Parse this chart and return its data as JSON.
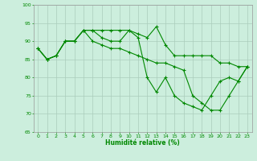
{
  "xlabel": "Humidité relative (%)",
  "xlim": [
    -0.5,
    23.5
  ],
  "ylim": [
    65,
    100
  ],
  "yticks": [
    65,
    70,
    75,
    80,
    85,
    90,
    95,
    100
  ],
  "xticks": [
    0,
    1,
    2,
    3,
    4,
    5,
    6,
    7,
    8,
    9,
    10,
    11,
    12,
    13,
    14,
    15,
    16,
    17,
    18,
    19,
    20,
    21,
    22,
    23
  ],
  "background_color": "#cceedd",
  "grid_color": "#aaccbb",
  "line_color": "#008800",
  "marker": "+",
  "markersize": 3,
  "linewidth": 0.8,
  "series": [
    [
      88,
      85,
      86,
      90,
      90,
      93,
      93,
      93,
      93,
      93,
      93,
      92,
      91,
      94,
      89,
      86,
      86,
      86,
      86,
      86,
      84,
      84,
      83,
      83
    ],
    [
      88,
      85,
      86,
      90,
      90,
      93,
      93,
      91,
      90,
      90,
      93,
      91,
      80,
      76,
      80,
      75,
      73,
      72,
      71,
      75,
      79,
      80,
      79,
      83
    ],
    [
      88,
      85,
      86,
      90,
      90,
      93,
      90,
      89,
      88,
      88,
      87,
      86,
      85,
      84,
      84,
      83,
      82,
      75,
      73,
      71,
      71,
      75,
      79,
      83
    ]
  ]
}
